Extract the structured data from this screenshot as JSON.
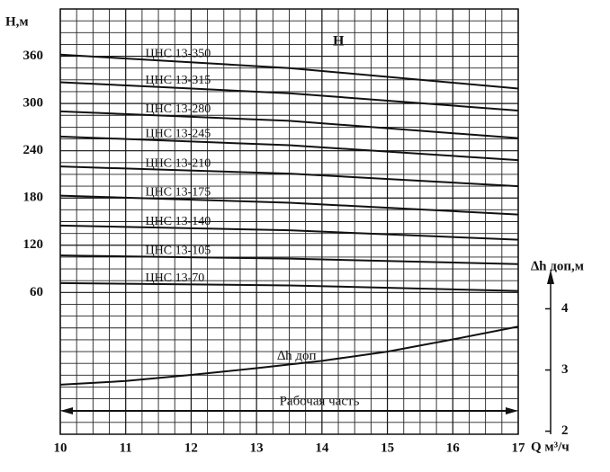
{
  "chart_data": {
    "type": "line",
    "y_label": "H,м",
    "y2_label": "∆h доп,м",
    "x_label": "Q м³/ч",
    "annotations": [
      "H",
      "Рабочая часть"
    ],
    "xlim": [
      10,
      17
    ],
    "xticks": [
      10,
      11,
      12,
      13,
      14,
      15,
      16,
      17
    ],
    "ylim": [
      -120,
      420
    ],
    "yticks": [
      60,
      120,
      180,
      240,
      300,
      360
    ],
    "y2lim": [
      1.95,
      8.9
    ],
    "y2ticks": [
      2,
      3,
      4
    ],
    "minor_xticks": [
      10.25,
      10.5,
      10.75,
      11.25,
      11.5,
      11.75,
      12.25,
      12.5,
      12.75,
      13.25,
      13.5,
      13.75,
      14.25,
      14.5,
      14.75,
      15.25,
      15.5,
      15.75,
      16.25,
      16.5,
      16.75
    ],
    "minor_yticks": [
      -105,
      -90,
      -75,
      -60,
      -45,
      -30,
      -15,
      0,
      15,
      30,
      45,
      75,
      90,
      105,
      135,
      150,
      165,
      195,
      210,
      225,
      255,
      270,
      285,
      315,
      330,
      345,
      375,
      390,
      405
    ],
    "grid": true,
    "series": [
      {
        "name": "ЦНС 13-350",
        "color": "#111",
        "x": [
          10,
          13.5,
          17
        ],
        "values": [
          362,
          345,
          319
        ]
      },
      {
        "name": "ЦНС 13-315",
        "color": "#111",
        "x": [
          10,
          13.5,
          17
        ],
        "values": [
          327,
          313,
          291
        ]
      },
      {
        "name": "ЦНС 13-280",
        "color": "#111",
        "x": [
          10,
          13.5,
          17
        ],
        "values": [
          290,
          278,
          256
        ]
      },
      {
        "name": "ЦНС 13-245",
        "color": "#111",
        "x": [
          10,
          13.5,
          17
        ],
        "values": [
          258,
          247,
          228
        ]
      },
      {
        "name": "ЦНС 13-210",
        "color": "#111",
        "x": [
          10,
          13.5,
          17
        ],
        "values": [
          220,
          211,
          195
        ]
      },
      {
        "name": "ЦНС 13-175",
        "color": "#111",
        "x": [
          10,
          13.5,
          17
        ],
        "values": [
          183,
          174,
          159
        ]
      },
      {
        "name": "ЦНС 13-140",
        "color": "#111",
        "x": [
          10,
          13.5,
          17
        ],
        "values": [
          145,
          139,
          127
        ]
      },
      {
        "name": "ЦНС 13-105",
        "color": "#111",
        "x": [
          10,
          13.5,
          17
        ],
        "values": [
          107,
          103,
          96
        ]
      },
      {
        "name": "ЦНС 13-70",
        "color": "#111",
        "x": [
          10,
          13.5,
          17
        ],
        "values": [
          72,
          69,
          62
        ]
      },
      {
        "name": "∆h доп",
        "color": "#111",
        "axis": "y2",
        "x": [
          10,
          11,
          12,
          13,
          14,
          15,
          16,
          17
        ],
        "values": [
          2.76,
          2.82,
          2.92,
          3.03,
          3.15,
          3.3,
          3.5,
          3.71
        ]
      }
    ]
  }
}
